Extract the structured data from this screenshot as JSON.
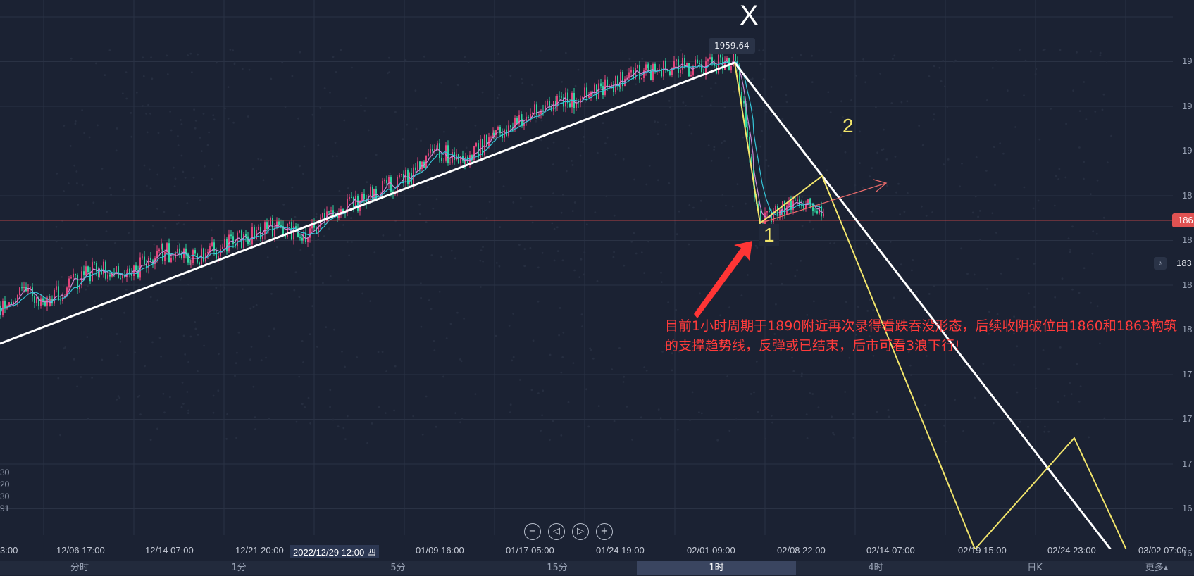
{
  "chart_data": {
    "type": "candlestick",
    "title": "",
    "y_ticks": [
      "19",
      "19",
      "19",
      "18",
      "18",
      "18",
      "18",
      "17",
      "17",
      "17",
      "16",
      "16"
    ],
    "left_ticks": [
      "30",
      "20",
      "30",
      "91"
    ],
    "x_ticks": [
      "3:00",
      "12/06 17:00",
      "12/14 07:00",
      "12/21 20:00",
      "2022/12/29 12:00 四",
      "01/09 16:00",
      "01/17 05:00",
      "01/24 19:00",
      "02/01 09:00",
      "02/08 22:00",
      "02/14 07:00",
      "02/19 15:00",
      "02/24 23:00",
      "03/02 07:00"
    ],
    "peak_value": "1959.64",
    "current_price_label": "186",
    "alert_price_label": "183",
    "series": [
      {
        "values": [
          1812,
          1820,
          1815,
          1825,
          1835,
          1830,
          1845,
          1840,
          1850,
          1860,
          1855,
          1870,
          1880,
          1890,
          1905,
          1900,
          1915,
          1925,
          1935,
          1940,
          1950,
          1955,
          1959.64,
          1920,
          1880,
          1862,
          1870,
          1875,
          1868
        ]
      }
    ],
    "annotations": {
      "wave_labels": [
        "X",
        "1",
        "2"
      ],
      "text": "目前1小时周期于1890附近再次录得看跌吞没形态，后续收阴破位由1860和1863构筑的支撑趋势线，反弹或已结束，后市可看3浪下行!"
    }
  },
  "nav": {
    "zoom_out": "−",
    "prev": "◁",
    "next": "▷",
    "zoom_in": "+"
  },
  "tabs": [
    "分时",
    "1分",
    "5分",
    "15分",
    "1时",
    "4时",
    "日K",
    "更多▴"
  ],
  "colors": {
    "background": "#1b2233",
    "up": "#e0457b",
    "down": "#2fd4a0",
    "trend": "#ffffff",
    "projection": "#f2e56b",
    "arrow": "#ff3b3b"
  }
}
